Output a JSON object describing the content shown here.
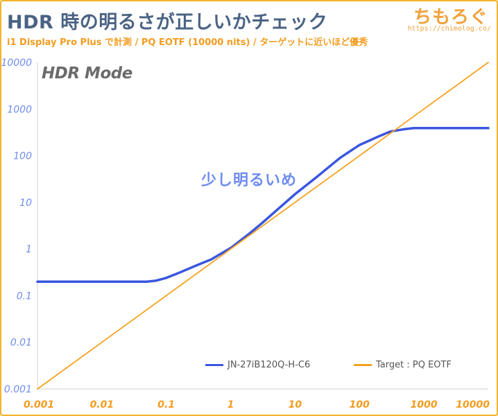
{
  "header": {
    "title": "HDR 時の明るさが正しいかチェック",
    "subtitle": "i1 Display Pro Plus で計測 / PQ EOTF (10000 nits) / ターゲットに近いほど優秀",
    "logo": "ちもろぐ",
    "logo_url": "https://chimolog.co/"
  },
  "colors": {
    "frame": "#f6b32b",
    "measured": "#3a56de",
    "target": "#f6a21e",
    "axis_labels": "#6f8cf0",
    "x_tick_labels": "#f39c1f"
  },
  "chart_data": {
    "type": "line",
    "title": "HDR 時の明るさが正しいかチェック",
    "mode_label": "HDR Mode",
    "annotation": "少し明るいめ",
    "x_scale": "log",
    "y_scale": "log",
    "xlim": [
      0.001,
      10000
    ],
    "ylim": [
      0.001,
      10000
    ],
    "grid": false,
    "legend_position": "bottom",
    "x_ticks": [
      "0.001",
      "0.01",
      "0.1",
      "1",
      "10",
      "100",
      "1000",
      "10000"
    ],
    "y_ticks": [
      "0.001",
      "0.01",
      "0.1",
      "1",
      "10",
      "100",
      "1000",
      "10000"
    ],
    "series": [
      {
        "name": "JN-27iB120Q-H-C6",
        "color": "#3a56de",
        "x": [
          0.001,
          0.005,
          0.02,
          0.05,
          0.07,
          0.1,
          0.15,
          0.3,
          0.5,
          0.8,
          1,
          2,
          3,
          5,
          10,
          20,
          50,
          100,
          200,
          300,
          500,
          700,
          1000,
          10000
        ],
        "y": [
          0.2,
          0.2,
          0.2,
          0.2,
          0.21,
          0.24,
          0.3,
          0.45,
          0.6,
          0.88,
          1.05,
          2.2,
          3.5,
          6.5,
          15,
          32,
          90,
          170,
          260,
          330,
          370,
          390,
          390,
          390
        ]
      },
      {
        "name": "Target : PQ EOTF",
        "color": "#f6a21e",
        "x": [
          0.001,
          0.01,
          0.1,
          1,
          10,
          100,
          1000,
          10000
        ],
        "y": [
          0.001,
          0.01,
          0.1,
          1,
          10,
          100,
          1000,
          10000
        ]
      }
    ]
  }
}
